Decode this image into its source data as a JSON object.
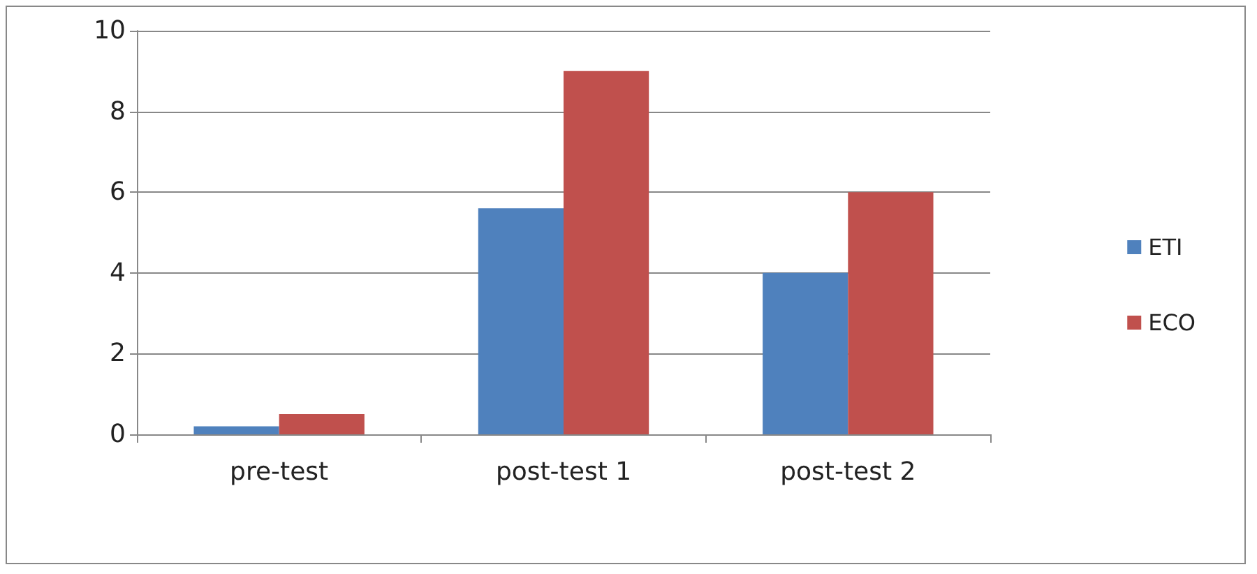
{
  "chart_data": {
    "type": "bar",
    "categories": [
      "pre-test",
      "post-test 1",
      "post-test 2"
    ],
    "series": [
      {
        "name": "ETI",
        "color": "#4f81bd",
        "values": [
          0.2,
          5.6,
          4
        ]
      },
      {
        "name": "ECO",
        "color": "#c0504d",
        "values": [
          0.5,
          9,
          6
        ]
      }
    ],
    "ylim": [
      0,
      10
    ],
    "yticks": [
      0,
      2,
      4,
      6,
      8,
      10
    ],
    "grid": "y",
    "legend": "right"
  }
}
